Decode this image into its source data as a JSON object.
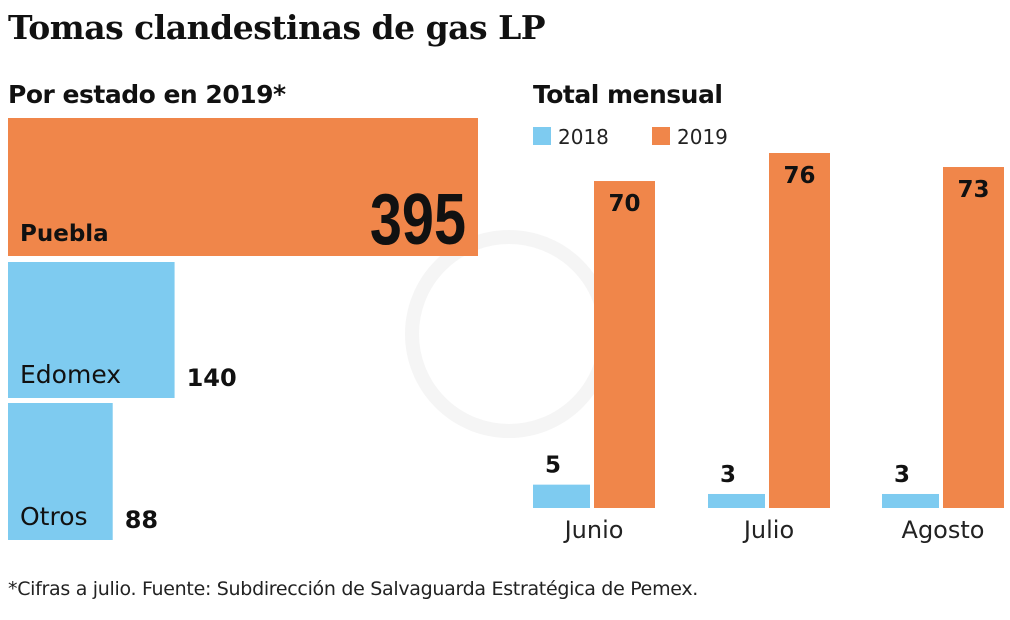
{
  "title": "Tomas clandestinas de gas LP",
  "footnote": "*Cifras a julio. Fuente: Subdirección de Salvaguarda Estratégica de Pemex.",
  "colors": {
    "2018": "#7ECBF0",
    "2019": "#F0864A"
  },
  "chart_data": [
    {
      "type": "bar",
      "orientation": "horizontal",
      "title": "Por estado en 2019*",
      "categories": [
        "Puebla",
        "Edomex",
        "Otros"
      ],
      "values": [
        395,
        140,
        88
      ],
      "colors": [
        "#F0864A",
        "#7ECBF0",
        "#7ECBF0"
      ]
    },
    {
      "type": "bar",
      "title": "Total mensual",
      "categories": [
        "Junio",
        "Julio",
        "Agosto"
      ],
      "series": [
        {
          "name": "2018",
          "values": [
            5,
            3,
            3
          ],
          "color": "#7ECBF0"
        },
        {
          "name": "2019",
          "values": [
            70,
            76,
            73
          ],
          "color": "#F0864A"
        }
      ],
      "legend": "top-left",
      "grid": false
    }
  ]
}
